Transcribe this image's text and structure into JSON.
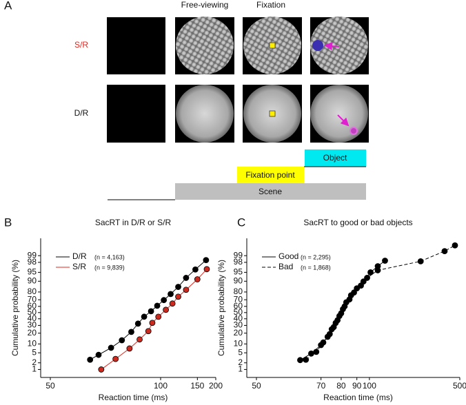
{
  "panel_a": {
    "label": "A",
    "columns": [
      "Free-viewing",
      "Fixation"
    ],
    "rows": [
      "S/R",
      "D/R"
    ],
    "timeline": {
      "object": "Object",
      "fixation": "Fixation point",
      "scene": "Scene"
    }
  },
  "chart_data": [
    {
      "type": "line",
      "panel": "B",
      "title": "SacRT in D/R or S/R",
      "xlabel": "Reaction time (ms)",
      "ylabel": "Cumulative probability (%)",
      "xscale": "reciprocal",
      "yscale": "probit",
      "xlim": [
        50,
        200
      ],
      "xticks": [
        50,
        100,
        150,
        200
      ],
      "ylim": [
        0.4,
        99.88
      ],
      "yticks": [
        1,
        2,
        5,
        10,
        20,
        30,
        40,
        50,
        60,
        70,
        80,
        90,
        95,
        98,
        99
      ],
      "series": [
        {
          "name": "D/R",
          "n_label": "(n = 4,163)",
          "color": "#000000",
          "marker": "#000000",
          "dash": false,
          "x": [
            61,
            64,
            69,
            74,
            79,
            83,
            87,
            92,
            97,
            103,
            110,
            119,
            130,
            146,
            170
          ],
          "values": [
            2.7,
            4.2,
            7.5,
            12.9,
            21.5,
            32.6,
            43.3,
            52.2,
            61,
            69.5,
            77.6,
            85.3,
            92.2,
            96.1,
            98.4
          ]
        },
        {
          "name": "S/R",
          "n_label": "(n = 9,839)",
          "color": "#e0261e",
          "marker": "#cc2a1e",
          "dash": false,
          "x": [
            65,
            71,
            78,
            84,
            90,
            93,
            98,
            105,
            112,
            119,
            130,
            150,
            172
          ],
          "values": [
            1.0,
            2.9,
            7.1,
            13.6,
            22.4,
            33.7,
            43.2,
            54.5,
            64.4,
            74.2,
            82.4,
            91.3,
            96.2
          ]
        }
      ]
    },
    {
      "type": "line",
      "panel": "C",
      "title": "SacRT to good or bad objects",
      "xlabel": "Reaction time (ms)",
      "ylabel": "Cumulative probability (%)",
      "xscale": "reciprocal",
      "yscale": "probit",
      "xlim": [
        50,
        500
      ],
      "xticks": [
        50,
        70,
        80,
        90,
        100,
        500
      ],
      "ylim": [
        0.4,
        99.88
      ],
      "yticks": [
        1,
        2,
        5,
        10,
        20,
        30,
        40,
        50,
        60,
        70,
        80,
        90,
        95,
        98,
        99
      ],
      "series": [
        {
          "name": "Good",
          "n_label": "(n = 2,295)",
          "color": "#000000",
          "marker": "#000000",
          "dash": false,
          "x": [
            62,
            66,
            70,
            73,
            75,
            77,
            79,
            81,
            83,
            86,
            90,
            95,
            101,
            108,
            116
          ],
          "values": [
            2.6,
            4.7,
            9.2,
            16.1,
            24.8,
            33.6,
            44.4,
            55.6,
            66.3,
            76.0,
            83.9,
            89.8,
            95.0,
            97.1,
            98.3
          ]
        },
        {
          "name": "Bad",
          "n_label": "(n = 1,868)",
          "color": "#000000",
          "marker": "#000000",
          "dash": true,
          "x": [
            64,
            68,
            71,
            74,
            76,
            78,
            80,
            82,
            85,
            88,
            93,
            98,
            108,
            183,
            299,
            412
          ],
          "values": [
            2.7,
            5.4,
            11.1,
            19.0,
            27.7,
            37.8,
            48.8,
            60.0,
            70.5,
            79.4,
            86.5,
            92.2,
            95.8,
            98.2,
            99.4,
            99.7
          ]
        }
      ]
    }
  ]
}
